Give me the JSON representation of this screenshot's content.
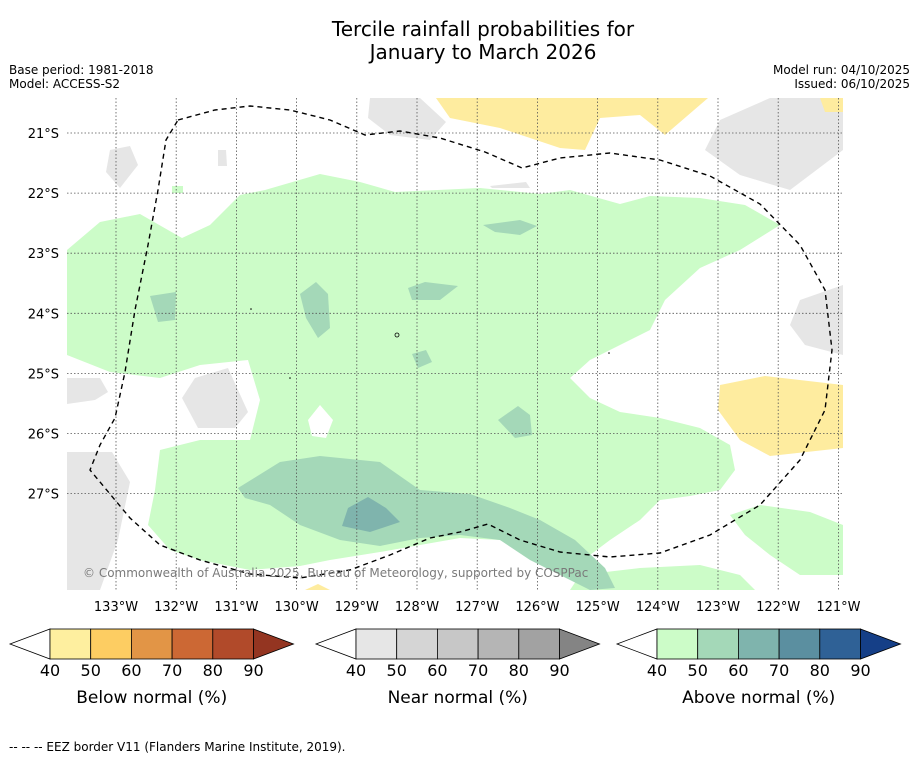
{
  "title_line1": "Tercile rainfall probabilities for",
  "title_line2": "January to March 2026",
  "base_period": "Base period: 1981-2018",
  "model": "Model: ACCESS-S2",
  "model_run": "Model run: 04/10/2025",
  "issued": "Issued: 06/10/2025",
  "copyright": "© Commonwealth of Australia 2025, Bureau of Meteorology, supported by COSPPac",
  "footnote": "--  --  -- EEZ border V11 (Flanders Marine Institute, 2019).",
  "map": {
    "lon_labels": [
      "133°W",
      "132°W",
      "131°W",
      "130°W",
      "129°W",
      "128°W",
      "127°W",
      "126°W",
      "125°W",
      "124°W",
      "123°W",
      "122°W",
      "121°W"
    ],
    "lat_labels": [
      "21°S",
      "22°S",
      "23°S",
      "24°S",
      "25°S",
      "26°S",
      "27°S"
    ],
    "lon_range": [
      -133.8,
      -120.9
    ],
    "lat_range": [
      -28.6,
      -20.4
    ],
    "grid": true,
    "colors": {
      "above_40": "#ccfcc8",
      "above_50": "#a4d8b8",
      "above_60": "#7fb4ad",
      "near_40": "#e6e6e6",
      "below_40": "#feec9f"
    }
  },
  "colorbars": [
    {
      "label": "Below normal (%)",
      "ticks": [
        "40",
        "50",
        "60",
        "70",
        "80",
        "90"
      ],
      "colors": [
        "#ffffff",
        "#feef9f",
        "#fdcd62",
        "#e29546",
        "#cc6834",
        "#b14a2a",
        "#943521"
      ]
    },
    {
      "label": "Near normal (%)",
      "ticks": [
        "40",
        "50",
        "60",
        "70",
        "80",
        "90"
      ],
      "colors": [
        "#ffffff",
        "#e6e6e6",
        "#d5d5d5",
        "#c7c7c7",
        "#b5b5b5",
        "#a2a2a2",
        "#848484"
      ]
    },
    {
      "label": "Above normal (%)",
      "ticks": [
        "40",
        "50",
        "60",
        "70",
        "80",
        "90"
      ],
      "colors": [
        "#ffffff",
        "#ccfcc8",
        "#a4d8b8",
        "#7fb4ad",
        "#5b8fa0",
        "#2f6196",
        "#153f87"
      ]
    }
  ]
}
